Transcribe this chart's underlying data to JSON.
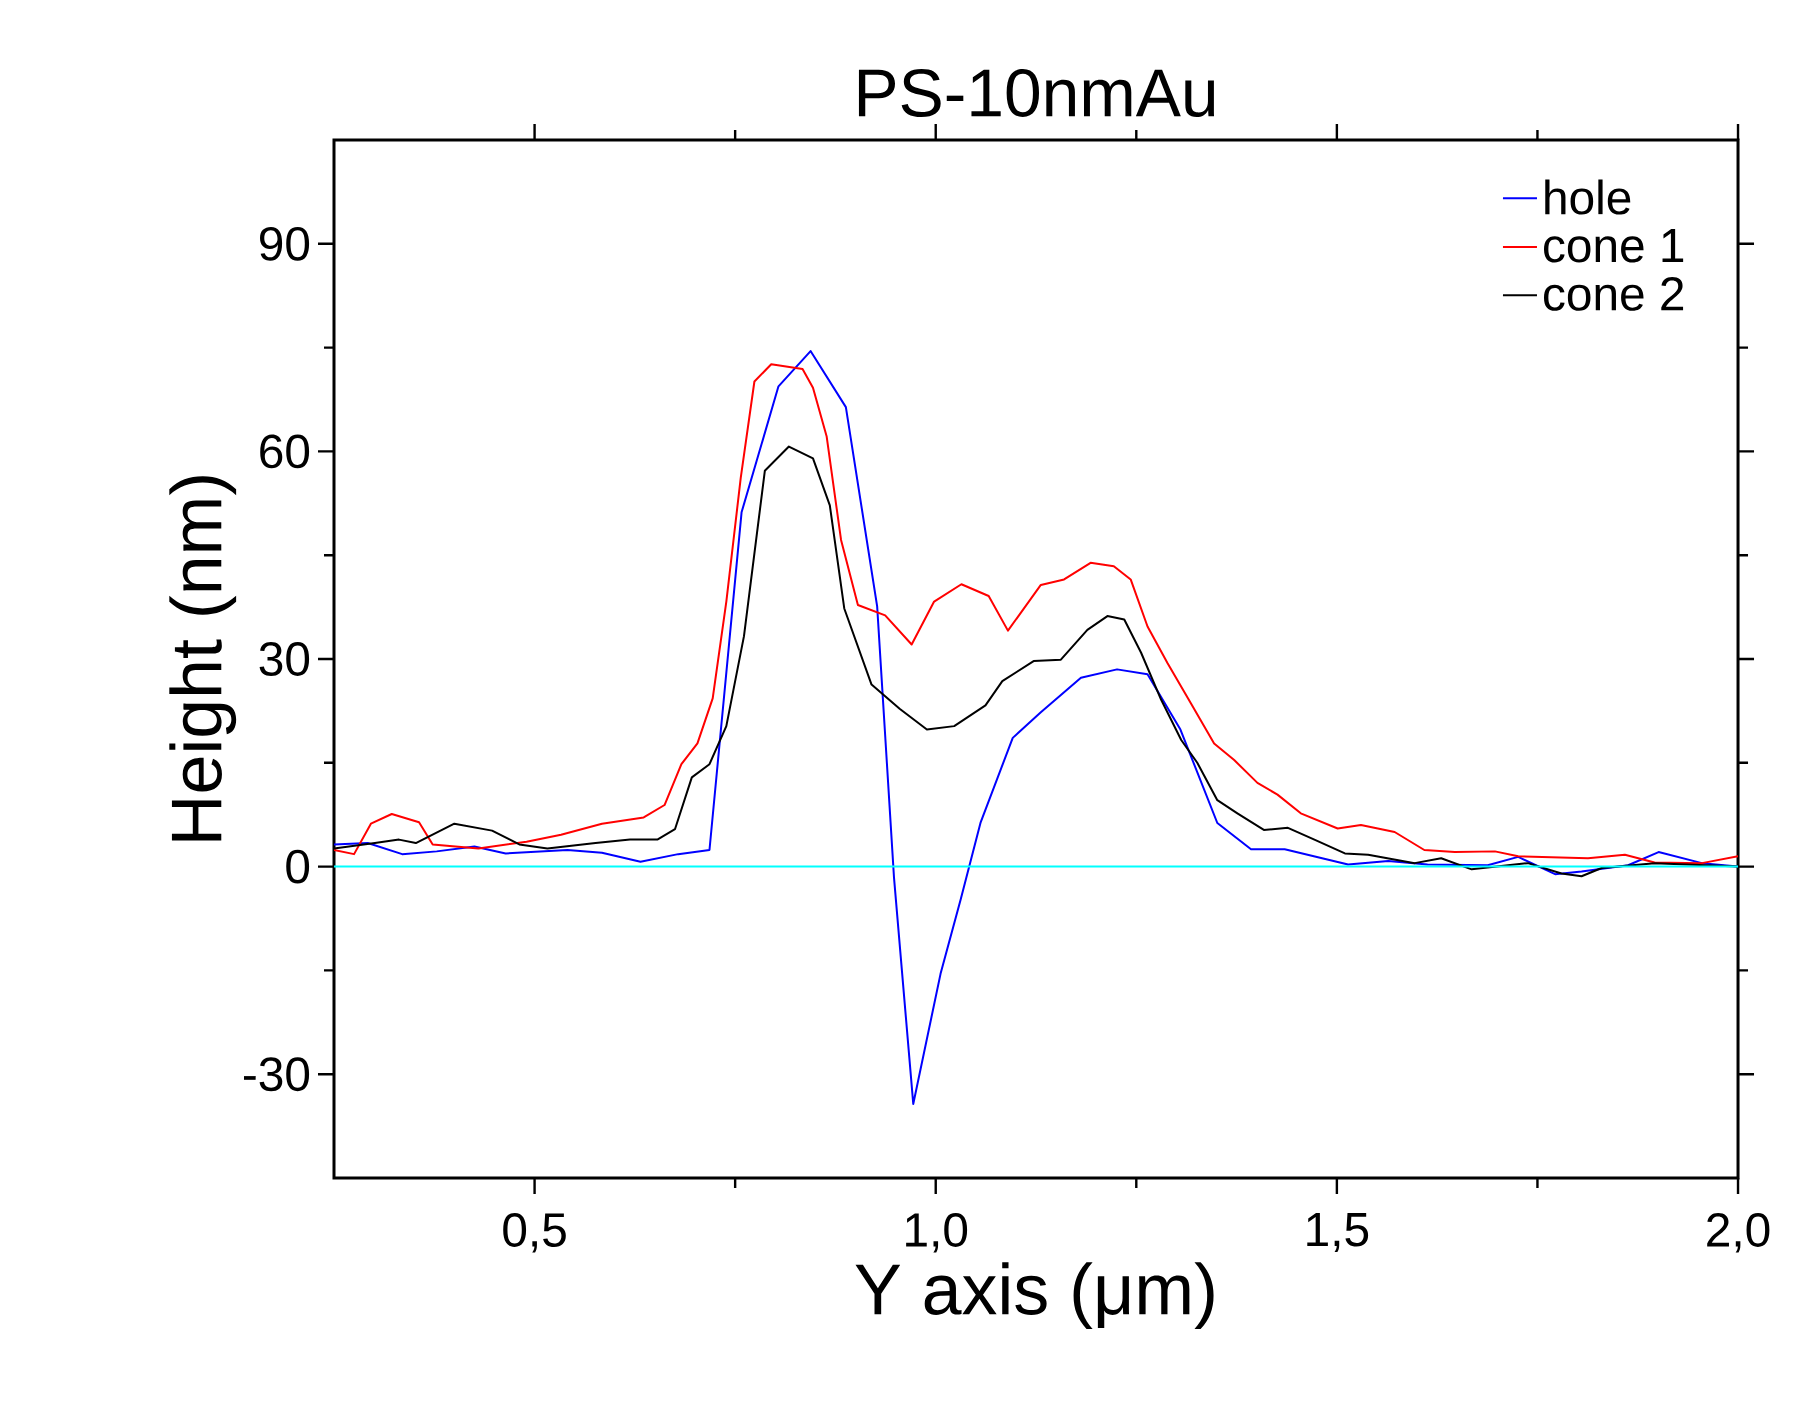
{
  "chart_data": {
    "type": "line",
    "title": "PS-10nmAu",
    "xlabel": "Y axis  (μm)",
    "ylabel": "Height (nm)",
    "xlim": [
      0.25,
      2.0
    ],
    "ylim": [
      -45,
      105
    ],
    "xticks": [
      {
        "value": 0.5,
        "label": "0,5"
      },
      {
        "value": 1.0,
        "label": "1,0"
      },
      {
        "value": 1.5,
        "label": "1,5"
      },
      {
        "value": 2.0,
        "label": "2,0"
      }
    ],
    "yticks": [
      -30,
      0,
      30,
      60,
      90
    ],
    "legend": "top right",
    "marker": "none",
    "line_style": "solid",
    "grid": false,
    "ref_lines": [
      {
        "axis": "y",
        "value": 0,
        "color": "#00ffff"
      }
    ],
    "series": [
      {
        "name": "hole",
        "color": "#0000ff",
        "x": [
          0.25,
          0.292,
          0.335,
          0.378,
          0.425,
          0.464,
          0.541,
          0.584,
          0.632,
          0.679,
          0.718,
          0.758,
          0.804,
          0.844,
          0.888,
          0.927,
          0.948,
          0.972,
          1.006,
          1.031,
          1.056,
          1.096,
          1.131,
          1.181,
          1.226,
          1.264,
          1.305,
          1.351,
          1.393,
          1.435,
          1.514,
          1.564,
          1.613,
          1.688,
          1.726,
          1.772,
          1.805,
          1.863,
          1.901,
          1.955,
          2.0
        ],
        "values": [
          3.2,
          3.4,
          1.8,
          2.2,
          2.9,
          1.9,
          2.4,
          2.0,
          0.7,
          1.8,
          2.4,
          51.2,
          69.4,
          74.5,
          66.4,
          37.6,
          -1.6,
          -34.3,
          -15.5,
          -4.8,
          6.4,
          18.6,
          22.3,
          27.3,
          28.5,
          27.8,
          19.8,
          6.3,
          2.5,
          2.5,
          0.3,
          0.8,
          0.3,
          0.2,
          1.4,
          -1.1,
          -0.7,
          0.2,
          2.1,
          0.5,
          0.0
        ]
      },
      {
        "name": "cone 1",
        "color": "#ff0000",
        "x": [
          0.25,
          0.275,
          0.296,
          0.322,
          0.356,
          0.373,
          0.43,
          0.49,
          0.533,
          0.584,
          0.636,
          0.662,
          0.683,
          0.703,
          0.722,
          0.739,
          0.757,
          0.774,
          0.795,
          0.834,
          0.847,
          0.864,
          0.882,
          0.903,
          0.937,
          0.97,
          0.998,
          1.032,
          1.066,
          1.09,
          1.131,
          1.16,
          1.193,
          1.222,
          1.243,
          1.264,
          1.289,
          1.318,
          1.347,
          1.372,
          1.401,
          1.426,
          1.455,
          1.501,
          1.53,
          1.572,
          1.609,
          1.647,
          1.697,
          1.726,
          1.813,
          1.859,
          1.896,
          1.955,
          2.0
        ],
        "values": [
          2.4,
          1.8,
          6.2,
          7.6,
          6.4,
          3.2,
          2.6,
          3.6,
          4.6,
          6.2,
          7.1,
          8.9,
          14.8,
          17.8,
          24.3,
          38.3,
          56.2,
          70.1,
          72.6,
          71.9,
          69.2,
          62.2,
          47.2,
          37.8,
          36.3,
          32.1,
          38.3,
          40.8,
          39.1,
          34.1,
          40.7,
          41.5,
          43.9,
          43.4,
          41.5,
          34.7,
          29.4,
          23.6,
          17.8,
          15.4,
          12.1,
          10.4,
          7.7,
          5.5,
          6.0,
          5.0,
          2.4,
          2.1,
          2.2,
          1.5,
          1.2,
          1.7,
          0.6,
          0.5,
          1.5
        ]
      },
      {
        "name": "cone 2",
        "color": "#000000",
        "x": [
          0.25,
          0.301,
          0.331,
          0.352,
          0.4,
          0.447,
          0.481,
          0.516,
          0.576,
          0.619,
          0.653,
          0.675,
          0.696,
          0.718,
          0.739,
          0.761,
          0.787,
          0.817,
          0.847,
          0.868,
          0.886,
          0.92,
          0.955,
          0.989,
          1.023,
          1.062,
          1.083,
          1.122,
          1.156,
          1.189,
          1.214,
          1.235,
          1.256,
          1.281,
          1.306,
          1.326,
          1.351,
          1.376,
          1.409,
          1.439,
          1.472,
          1.51,
          1.539,
          1.597,
          1.63,
          1.668,
          1.738,
          1.78,
          1.805,
          1.83,
          1.896,
          2.0
        ],
        "values": [
          2.6,
          3.4,
          3.9,
          3.4,
          6.2,
          5.2,
          3.2,
          2.6,
          3.4,
          3.9,
          3.9,
          5.4,
          12.9,
          14.8,
          20.3,
          33.3,
          57.2,
          60.7,
          59.0,
          52.2,
          37.3,
          26.3,
          22.8,
          19.8,
          20.3,
          23.3,
          26.8,
          29.7,
          29.9,
          34.2,
          36.2,
          35.7,
          30.9,
          24.1,
          18.3,
          15.0,
          9.6,
          7.7,
          5.3,
          5.6,
          3.9,
          1.9,
          1.7,
          0.5,
          1.2,
          -0.4,
          0.5,
          -1.0,
          -1.4,
          -0.2,
          0.5,
          0.0
        ]
      }
    ]
  }
}
